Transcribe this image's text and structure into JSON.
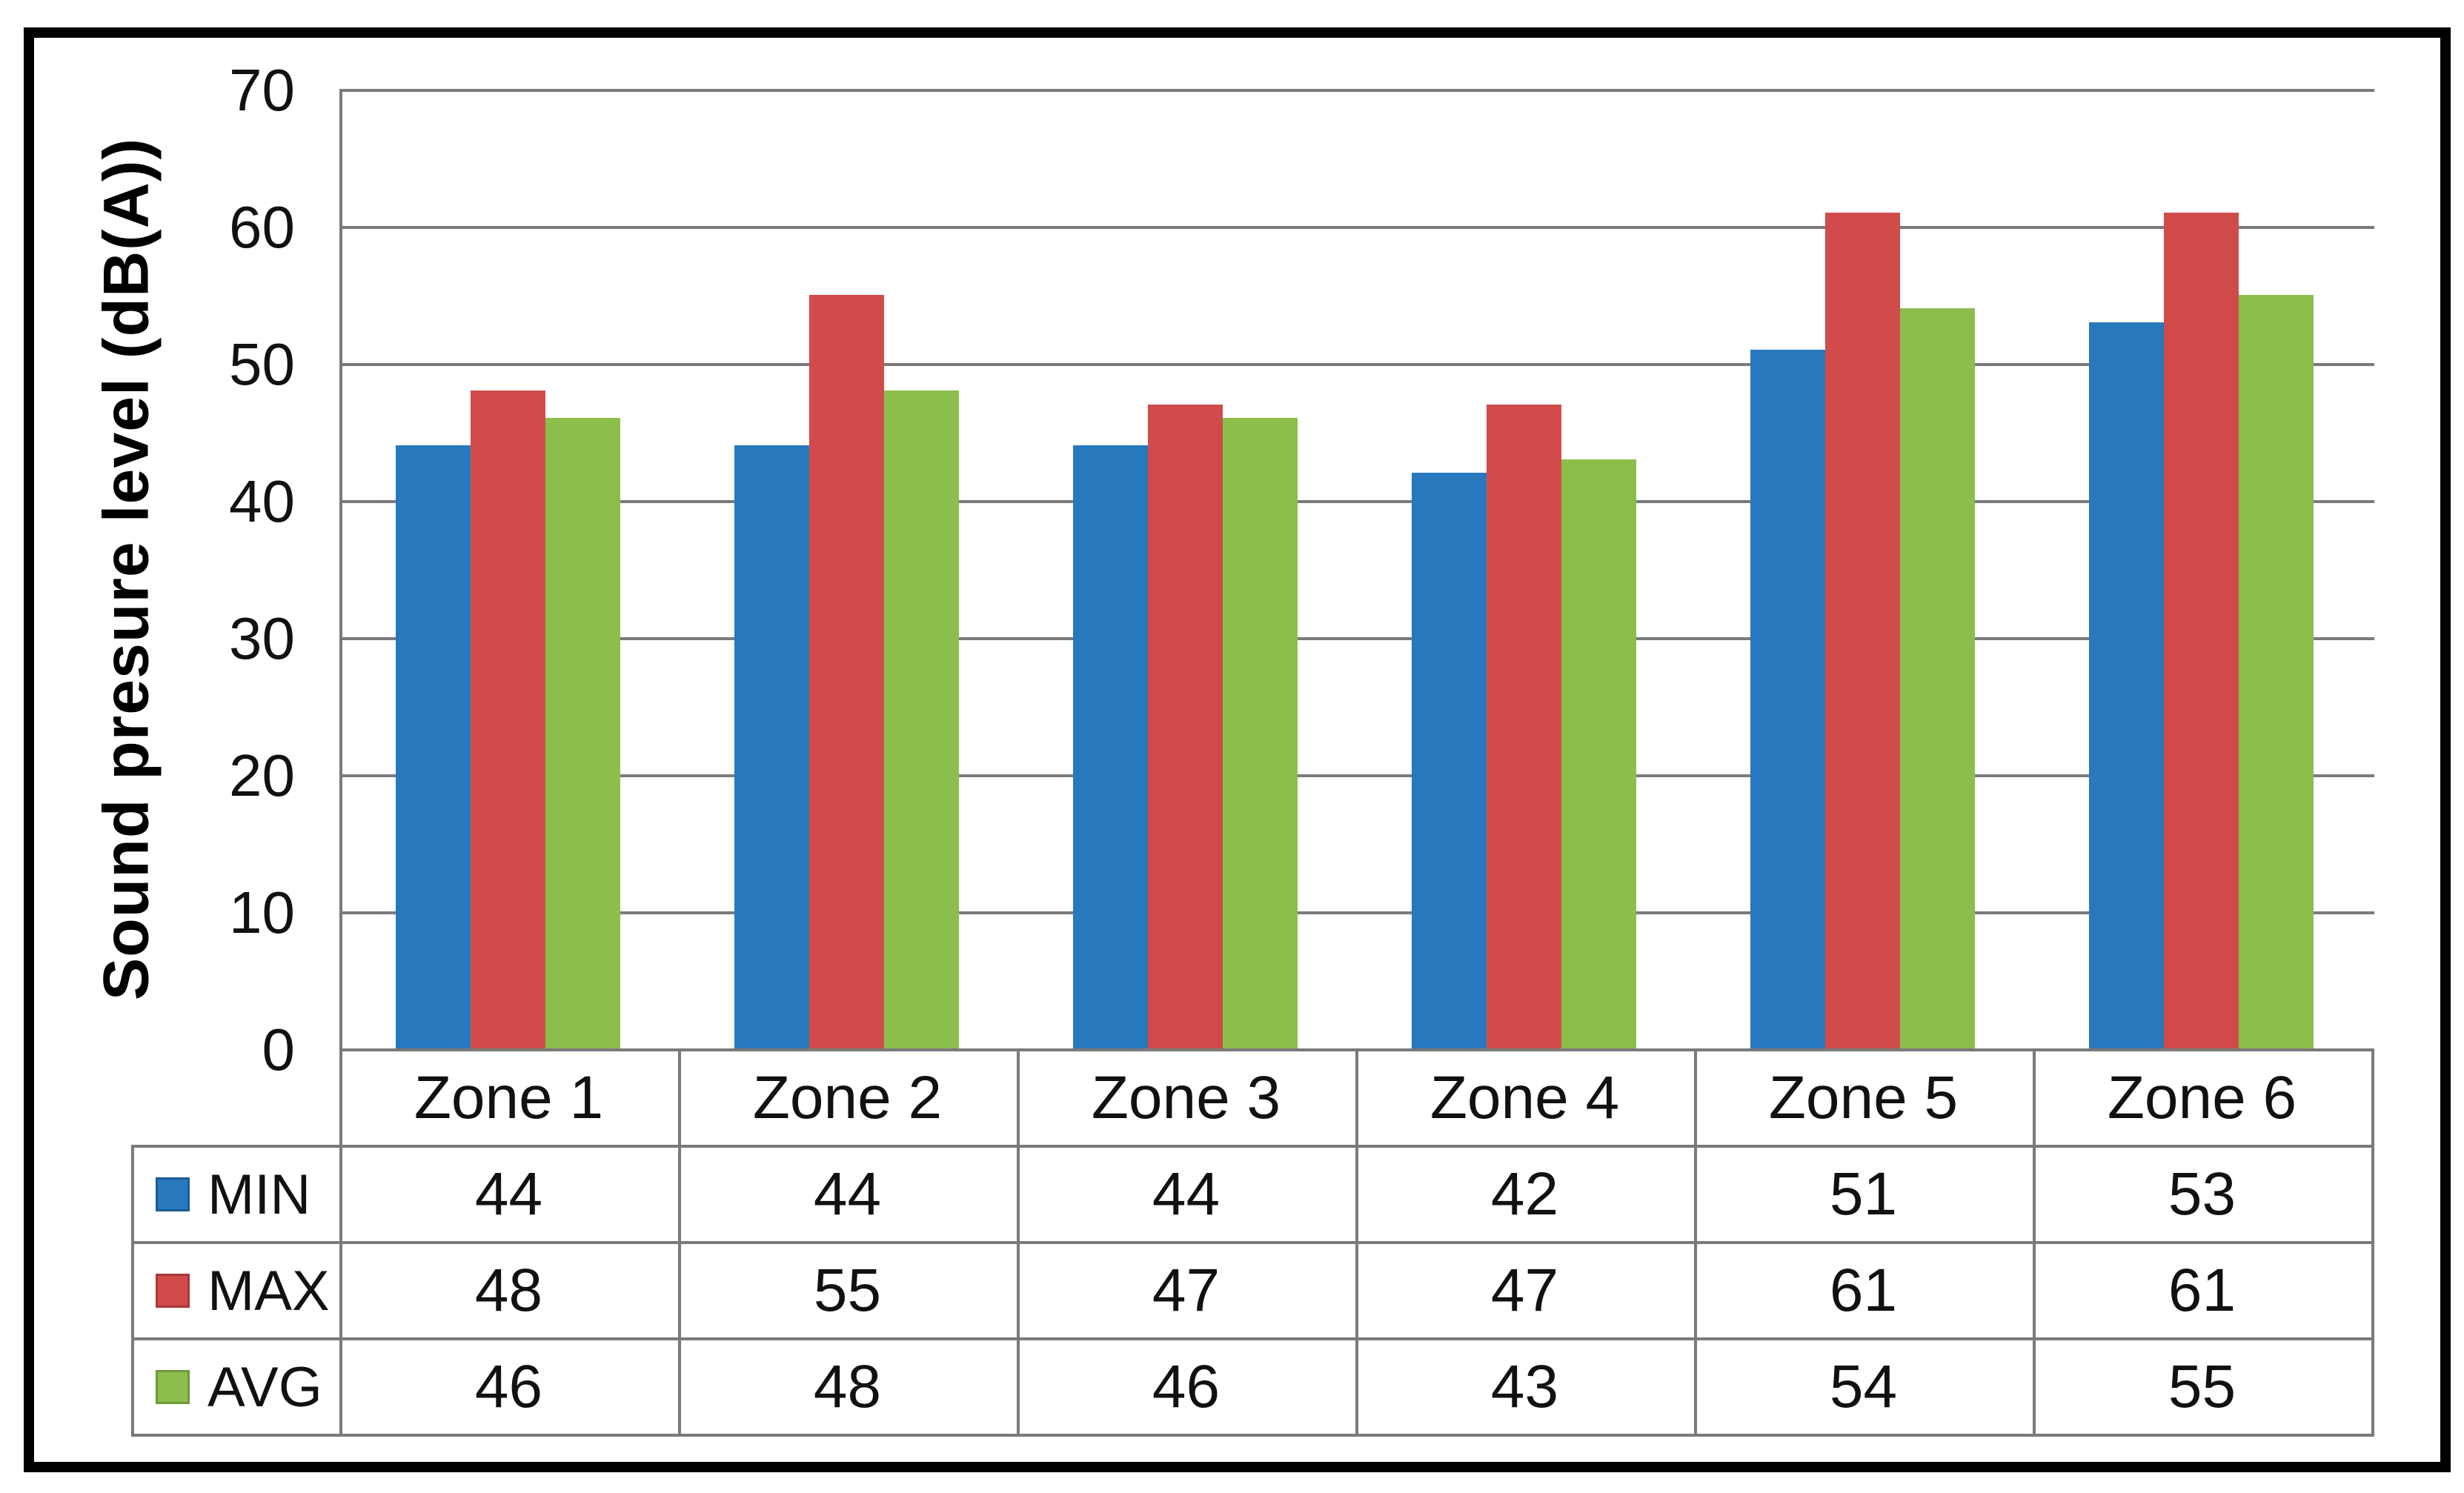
{
  "chart_data": {
    "type": "bar",
    "title": "",
    "xlabel": "",
    "ylabel": "Sound presure level (dB(A))",
    "categories": [
      "Zone 1",
      "Zone 2",
      "Zone 3",
      "Zone 4",
      "Zone 5",
      "Zone 6"
    ],
    "series": [
      {
        "name": "MIN",
        "color": "#2878BE",
        "swatch_border": "#1d5c95",
        "values": [
          44,
          44,
          44,
          42,
          51,
          53
        ]
      },
      {
        "name": "MAX",
        "color": "#D14B4B",
        "swatch_border": "#a83a3a",
        "values": [
          48,
          55,
          47,
          47,
          61,
          61
        ]
      },
      {
        "name": "AVG",
        "color": "#8CBE4C",
        "swatch_border": "#6e9a39",
        "values": [
          46,
          48,
          46,
          43,
          54,
          55
        ]
      }
    ],
    "ylim": [
      0,
      70
    ],
    "y_step": 10,
    "grid": true,
    "legend_position": "table-left-column",
    "data_table_shown": true
  },
  "y_axis": {
    "title": "Sound presure level (dB(A))",
    "tick_labels": [
      "70",
      "60",
      "50",
      "40",
      "30",
      "20",
      "10",
      "0"
    ]
  },
  "colors": {
    "grid": "#7a7a7a",
    "axis": "#7a7a7a",
    "table_border": "#7a7a7a",
    "frame": "#000000",
    "background": "#ffffff",
    "text": "#111111"
  }
}
